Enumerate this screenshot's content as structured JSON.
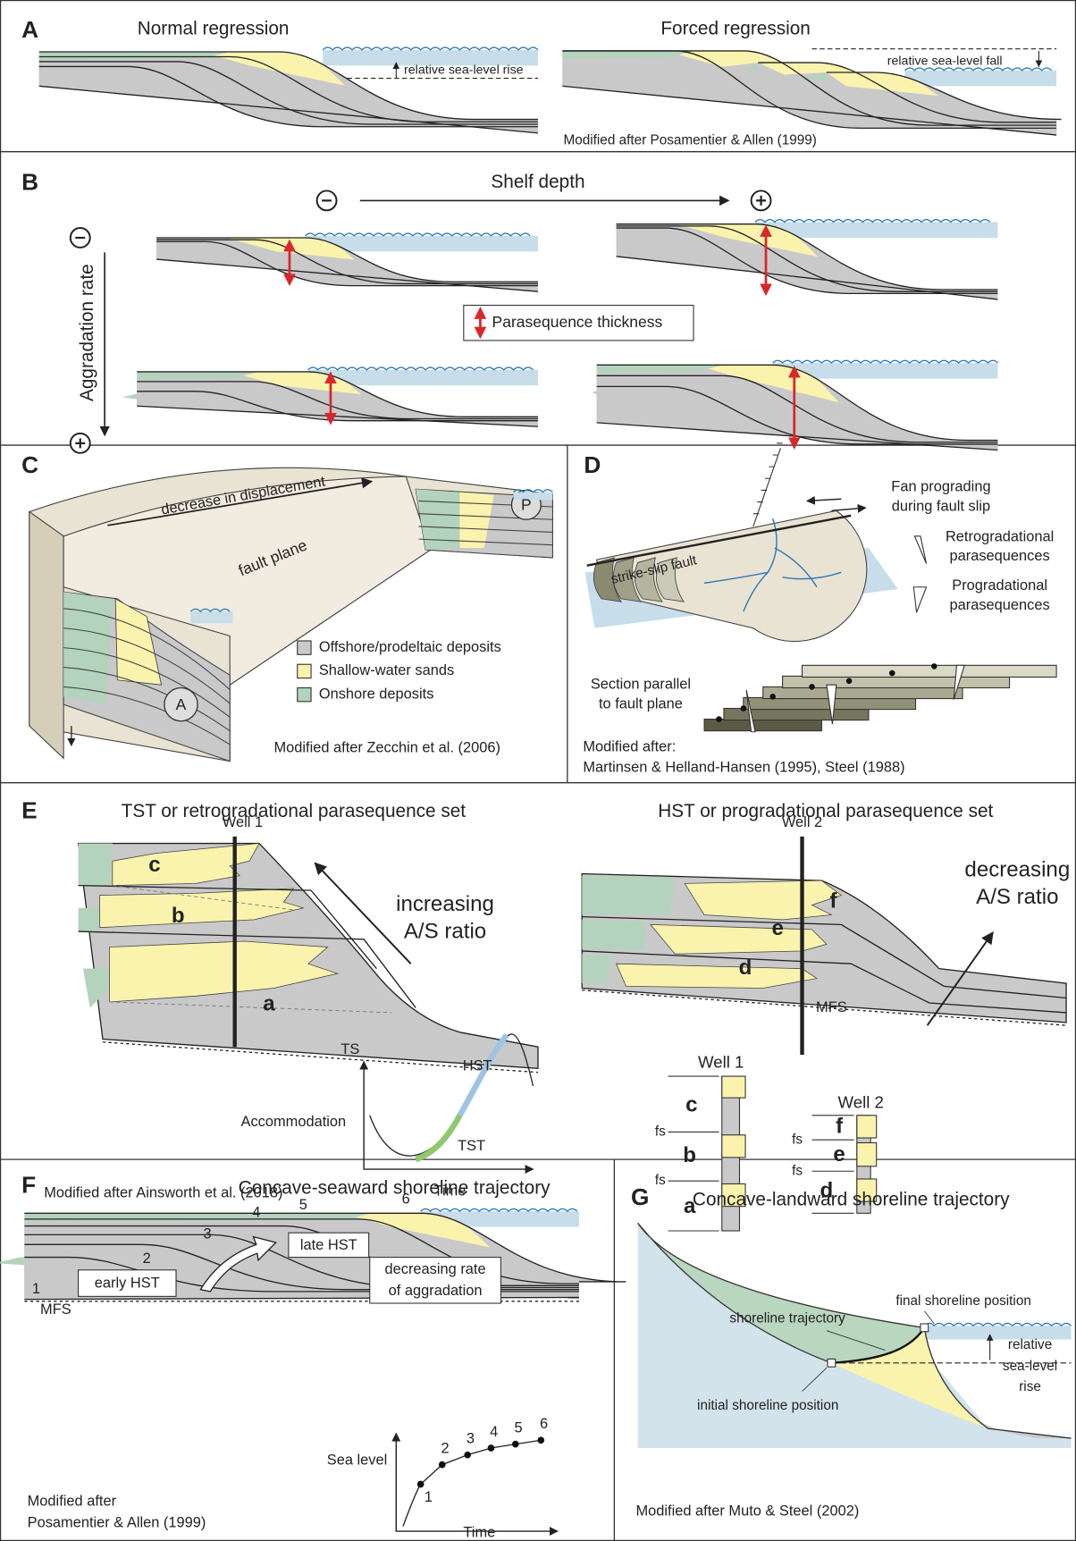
{
  "panels": {
    "A": {
      "label": "A",
      "normal_title": "Normal regression",
      "forced_title": "Forced regression",
      "rise_label": "relative sea-level rise",
      "fall_label": "relative sea-level fall",
      "credit": "Modified after Posamentier & Allen (1999)"
    },
    "B": {
      "label": "B",
      "shelf_depth": "Shelf depth",
      "aggradation_rate": "Aggradation rate",
      "thickness_key": "Parasequence thickness"
    },
    "C": {
      "label": "C",
      "displacement": "decrease in displacement",
      "fault_plane": "fault plane",
      "marker_A": "A",
      "marker_P": "P",
      "legend": [
        "Offshore/prodeltaic deposits",
        "Shallow-water sands",
        "Onshore deposits"
      ],
      "credit": "Modified after Zecchin et al. (2006)"
    },
    "D": {
      "label": "D",
      "fan": [
        "Fan prograding",
        "during fault slip"
      ],
      "fault": "strike-slip fault",
      "retro": [
        "Retrogradational",
        "parasequences"
      ],
      "pro": [
        "Progradational",
        "parasequences"
      ],
      "section": [
        "Section parallel",
        "to fault plane"
      ],
      "credit": [
        "Modified after:",
        "Martinsen & Helland-Hansen (1995), Steel (1988)"
      ]
    },
    "E": {
      "label": "E",
      "tst_title": "TST or retrogradational parasequence set",
      "hst_title": "HST or progradational parasequence set",
      "well1": "Well 1",
      "well2": "Well 2",
      "set1": [
        "c",
        "b",
        "a"
      ],
      "set2": [
        "f",
        "e",
        "d"
      ],
      "increasing": [
        "increasing",
        "A/S ratio"
      ],
      "decreasing": [
        "decreasing",
        "A/S ratio"
      ],
      "ts": "TS",
      "mfs": "MFS",
      "hst": "HST",
      "tst": "TST",
      "y_axis": "Accommodation",
      "x_axis": "Time",
      "credit": "Modified after Ainsworth et al. (2018)",
      "log1": {
        "title": "Well 1",
        "units": [
          "c",
          "b",
          "a"
        ],
        "fs": [
          "fs",
          "fs"
        ]
      },
      "log2": {
        "title": "Well 2",
        "units": [
          "f",
          "e",
          "d"
        ],
        "fs": [
          "fs",
          "fs"
        ]
      }
    },
    "F": {
      "label": "F",
      "title": "Concave-seaward shoreline trajectory",
      "clinoforms": [
        "1",
        "2",
        "3",
        "4",
        "5",
        "6"
      ],
      "early": "early HST",
      "late": "late HST",
      "rate": [
        "decreasing rate",
        "of aggradation"
      ],
      "mfs": "MFS",
      "y_axis": "Sea level",
      "x_axis": "Time",
      "points": [
        "1",
        "2",
        "3",
        "4",
        "5",
        "6"
      ],
      "credit": [
        "Modified after",
        "Posamentier & Allen (1999)"
      ]
    },
    "G": {
      "label": "G",
      "title": "Concave-landward shoreline trajectory",
      "final": "final shoreline position",
      "trajectory": "shoreline trajectory",
      "rise": [
        "relative",
        "sea-level",
        "rise"
      ],
      "initial": "initial shoreline position",
      "credit": "Modified after Muto & Steel (2002)"
    }
  }
}
